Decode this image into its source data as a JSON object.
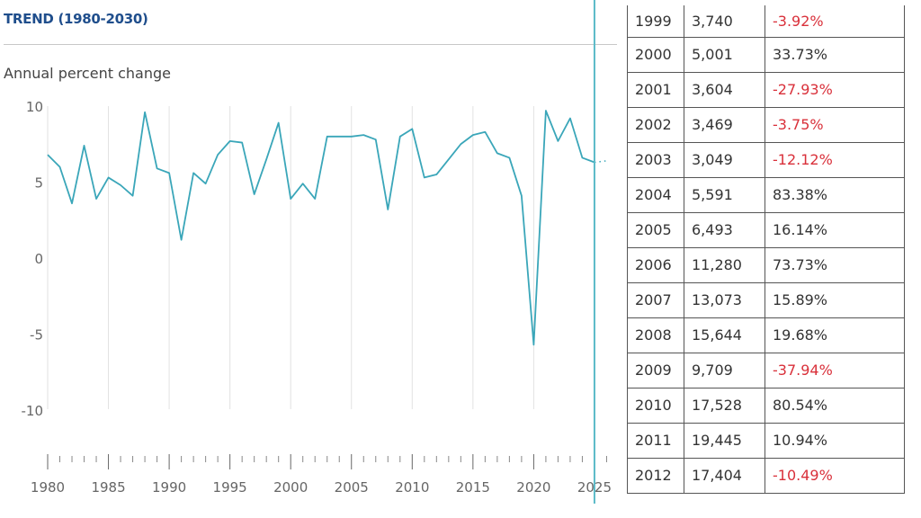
{
  "header": {
    "title": "TREND (1980-2030)",
    "subtitle": "Annual percent change"
  },
  "chart_data": {
    "type": "line",
    "title": "TREND (1980-2030)",
    "ylabel": "Annual percent change",
    "xlim": [
      1980,
      2026
    ],
    "ylim": [
      -10,
      10
    ],
    "yticks": [
      "10",
      "5",
      "0",
      "-5",
      "-10"
    ],
    "xticks": [
      "1980",
      "1985",
      "1990",
      "1995",
      "2000",
      "2005",
      "2010",
      "2015",
      "2020",
      "2025"
    ],
    "grid": "vertical",
    "color": "#3aa6b9",
    "marker_year": 2025,
    "x": [
      1980,
      1981,
      1982,
      1983,
      1984,
      1985,
      1986,
      1987,
      1988,
      1989,
      1990,
      1991,
      1992,
      1993,
      1994,
      1995,
      1996,
      1997,
      1998,
      1999,
      2000,
      2001,
      2002,
      2003,
      2004,
      2005,
      2006,
      2007,
      2008,
      2009,
      2010,
      2011,
      2012,
      2013,
      2014,
      2015,
      2016,
      2017,
      2018,
      2019,
      2020,
      2021,
      2022,
      2023,
      2024,
      2025
    ],
    "y": [
      6.8,
      6.0,
      3.6,
      7.4,
      3.9,
      5.3,
      4.8,
      4.1,
      9.6,
      5.9,
      5.6,
      1.2,
      5.6,
      4.9,
      6.8,
      7.7,
      7.6,
      4.2,
      6.5,
      8.9,
      3.9,
      4.9,
      3.9,
      8.0,
      8.0,
      8.0,
      8.1,
      7.8,
      3.2,
      8.0,
      8.5,
      5.3,
      5.5,
      6.5,
      7.5,
      8.1,
      8.3,
      6.9,
      6.6,
      4.1,
      -5.7,
      9.7,
      7.7,
      9.2,
      6.6,
      6.3
    ],
    "projection": {
      "x": [
        2025,
        2026
      ],
      "y": [
        6.3,
        6.4
      ]
    }
  },
  "table": {
    "negative_color": "#d9303a",
    "rows": [
      [
        "1999",
        "3,740",
        "-3.92%"
      ],
      [
        "2000",
        "5,001",
        "33.73%"
      ],
      [
        "2001",
        "3,604",
        "-27.93%"
      ],
      [
        "2002",
        "3,469",
        "-3.75%"
      ],
      [
        "2003",
        "3,049",
        "-12.12%"
      ],
      [
        "2004",
        "5,591",
        "83.38%"
      ],
      [
        "2005",
        "6,493",
        "16.14%"
      ],
      [
        "2006",
        "11,280",
        "73.73%"
      ],
      [
        "2007",
        "13,073",
        "15.89%"
      ],
      [
        "2008",
        "15,644",
        "19.68%"
      ],
      [
        "2009",
        "9,709",
        "-37.94%"
      ],
      [
        "2010",
        "17,528",
        "80.54%"
      ],
      [
        "2011",
        "19,445",
        "10.94%"
      ],
      [
        "2012",
        "17,404",
        "-10.49%"
      ]
    ]
  }
}
